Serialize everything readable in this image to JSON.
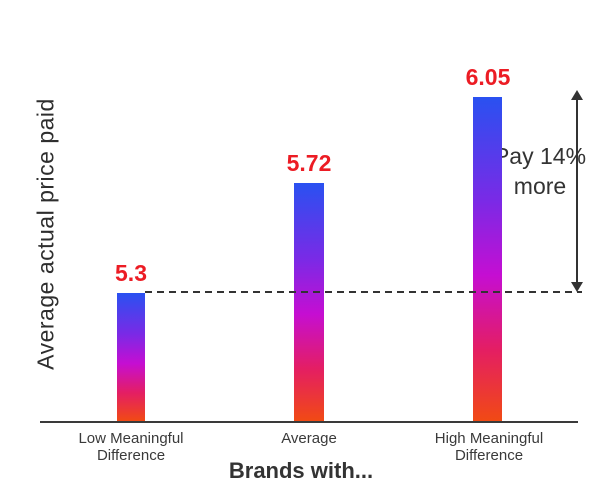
{
  "chart_data": {
    "type": "bar",
    "categories": [
      "Low Meaningful Difference",
      "Average",
      "High Meaningful Difference"
    ],
    "values": [
      5.3,
      5.72,
      6.05
    ],
    "value_labels": [
      "5.3",
      "5.72",
      "6.05"
    ],
    "title": "",
    "xlabel": "Brands with...",
    "ylabel": "Average actual price paid",
    "ylim": [
      4.8,
      6.1
    ],
    "grid": false,
    "legend": false,
    "reference_line_value": 5.3,
    "reference_line_style": "dashed",
    "annotation": "Pay 14% more",
    "annotation_arrow": "double-headed vertical, from 5.3 reference line to 6.05 bar top"
  },
  "colors": {
    "value_label_red": "#EC1C24",
    "text_dark": "#333333",
    "axis_line": "#3A3A3A",
    "bar_gradient_top": "#2951F1",
    "bar_gradient_mid": "#C50ED2",
    "bar_gradient_bottom": "#F14A14"
  }
}
